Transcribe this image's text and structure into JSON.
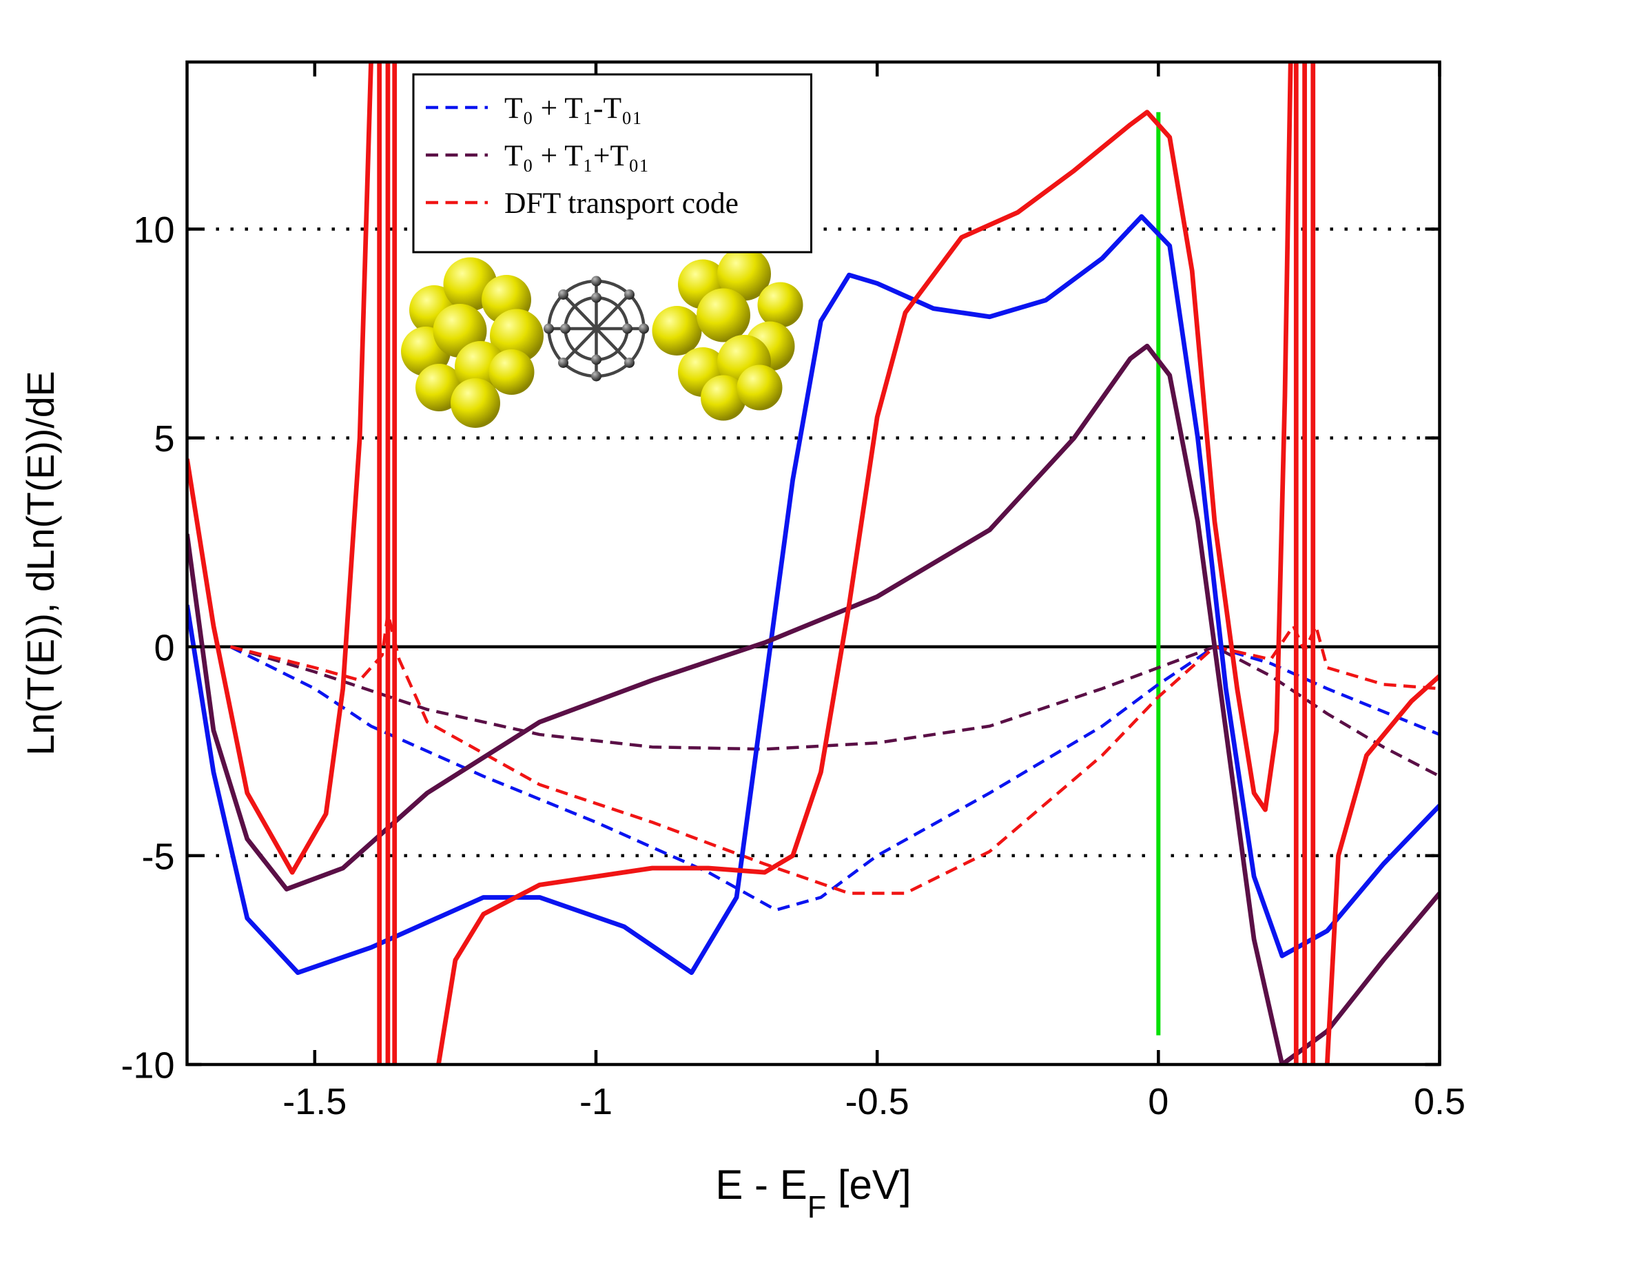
{
  "chart_data": {
    "type": "line",
    "xlabel": [
      "E - E",
      "F",
      " [eV]"
    ],
    "ylabel": "Ln(T(E)),  dLn(T(E))/dE",
    "xlim": [
      -1.727,
      0.5
    ],
    "ylim": [
      -10,
      14
    ],
    "xticks": [
      -1.5,
      -1,
      -0.5,
      0,
      0.5
    ],
    "yticks": [
      -10,
      -5,
      0,
      5,
      10
    ],
    "grid": true,
    "legend": "upper left",
    "vline": {
      "x": 0,
      "y": [
        -9.3,
        12.8
      ],
      "color": "#00e000"
    },
    "series": [
      {
        "name": "T₀ + T₁-T₀₁",
        "color": "#0a14f0",
        "dash": true,
        "x": [
          -1.65,
          -1.5,
          -1.4,
          -1.2,
          -1.0,
          -0.8,
          -0.68,
          -0.6,
          -0.5,
          -0.3,
          -0.1,
          0,
          0.1,
          0.2,
          0.3,
          0.5
        ],
        "values": [
          0,
          -1.0,
          -1.9,
          -3.1,
          -4.2,
          -5.4,
          -6.3,
          -6.0,
          -5.0,
          -3.5,
          -1.9,
          -0.9,
          0,
          -0.4,
          -1.0,
          -2.1
        ]
      },
      {
        "name": "T₀ + T₁+T₀₁",
        "color": "#5a0f46",
        "dash": true,
        "x": [
          -1.65,
          -1.5,
          -1.3,
          -1.1,
          -0.9,
          -0.7,
          -0.5,
          -0.3,
          -0.1,
          0,
          0.1,
          0.2,
          0.3,
          0.4,
          0.5
        ],
        "values": [
          0,
          -0.6,
          -1.5,
          -2.1,
          -2.4,
          -2.45,
          -2.3,
          -1.9,
          -1.0,
          -0.5,
          0,
          -0.7,
          -1.6,
          -2.4,
          -3.1
        ]
      },
      {
        "name": "DFT transport code",
        "color": "#f01414",
        "dash": true,
        "x": [
          -1.65,
          -1.5,
          -1.42,
          -1.38,
          -1.37,
          -1.35,
          -1.3,
          -1.1,
          -0.9,
          -0.7,
          -0.55,
          -0.45,
          -0.3,
          -0.1,
          0,
          0.1,
          0.2,
          0.24,
          0.26,
          0.28,
          0.3,
          0.4,
          0.5
        ],
        "values": [
          0,
          -0.5,
          -0.8,
          -0.2,
          0.8,
          -0.3,
          -1.8,
          -3.3,
          -4.2,
          -5.2,
          -5.9,
          -5.9,
          -4.9,
          -2.6,
          -1.2,
          0,
          -0.3,
          0.5,
          -0.1,
          0.5,
          -0.5,
          -0.9,
          -1.0
        ]
      },
      {
        "color": "#0a14f0",
        "dash": false,
        "x": [
          -1.727,
          -1.68,
          -1.62,
          -1.53,
          -1.4,
          -1.2,
          -1.1,
          -0.95,
          -0.83,
          -0.75,
          -0.7,
          -0.65,
          -0.6,
          -0.55,
          -0.5,
          -0.4,
          -0.3,
          -0.2,
          -0.1,
          -0.03,
          0.02,
          0.07,
          0.12,
          0.17,
          0.22,
          0.3,
          0.4,
          0.5
        ],
        "values": [
          1.0,
          -3,
          -6.5,
          -7.8,
          -7.2,
          -6.0,
          -6.0,
          -6.7,
          -7.8,
          -6,
          -1,
          4,
          7.8,
          8.9,
          8.7,
          8.1,
          7.9,
          8.3,
          9.3,
          10.3,
          9.6,
          5,
          -1,
          -5.5,
          -7.4,
          -6.8,
          -5.2,
          -3.8
        ]
      },
      {
        "color": "#5a0f46",
        "dash": false,
        "x": [
          -1.727,
          -1.68,
          -1.62,
          -1.55,
          -1.45,
          -1.3,
          -1.1,
          -0.9,
          -0.7,
          -0.5,
          -0.3,
          -0.15,
          -0.05,
          -0.02,
          0.02,
          0.07,
          0.12,
          0.17,
          0.22,
          0.3,
          0.4,
          0.5
        ],
        "values": [
          2.7,
          -2,
          -4.6,
          -5.8,
          -5.3,
          -3.5,
          -1.8,
          -0.8,
          0.1,
          1.2,
          2.8,
          5,
          6.9,
          7.2,
          6.5,
          3,
          -2,
          -7,
          -10,
          -9.2,
          -7.5,
          -5.9
        ]
      },
      {
        "color": "#f01414",
        "dash": false,
        "x": [
          -1.727,
          -1.68,
          -1.62,
          -1.54,
          -1.48,
          -1.45,
          -1.42,
          -1.4,
          null,
          -1.385,
          -1.385,
          null,
          -1.37,
          -1.37,
          null,
          -1.358,
          -1.358,
          null,
          -1.28,
          -1.25,
          -1.2,
          -1.1,
          -0.9,
          -0.8,
          -0.7,
          -0.65,
          -0.6,
          -0.55,
          -0.5,
          -0.45,
          -0.35,
          -0.25,
          -0.15,
          -0.05,
          -0.02,
          0.02,
          0.06,
          0.1,
          0.14,
          0.17,
          0.19,
          0.21,
          0.225,
          0.235,
          null,
          0.245,
          0.245,
          null,
          0.26,
          0.26,
          null,
          0.275,
          0.275,
          null,
          0.3,
          0.32,
          0.37,
          0.45,
          0.5
        ],
        "values": [
          4.5,
          0.5,
          -3.5,
          -5.4,
          -4,
          -1,
          5,
          14,
          null,
          14,
          -10,
          null,
          14,
          -10,
          null,
          14,
          -10,
          null,
          -10,
          -7.5,
          -6.4,
          -5.7,
          -5.3,
          -5.3,
          -5.4,
          -5.0,
          -3,
          1,
          5.5,
          8,
          9.8,
          10.4,
          11.4,
          12.5,
          12.8,
          12.2,
          9,
          3,
          -1,
          -3.5,
          -3.9,
          -2,
          6,
          14,
          null,
          14,
          -10,
          null,
          14,
          -10,
          null,
          14,
          -10,
          null,
          -10,
          -5,
          -2.6,
          -1.3,
          -0.7
        ]
      }
    ]
  }
}
